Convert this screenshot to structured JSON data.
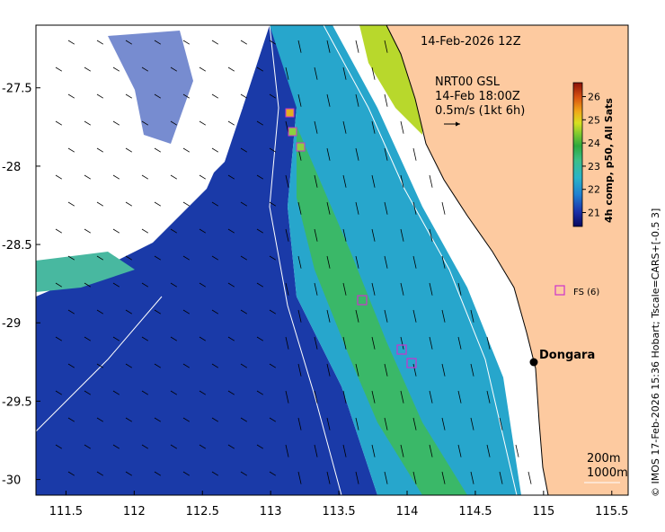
{
  "map": {
    "timestamp": "14-Feb-2026 12Z",
    "current_title": "NRT00 GSL",
    "current_time": "14-Feb 18:00Z",
    "current_scale": "0.5m/s (1kt 6h)",
    "place_label": "Dongara",
    "station_label": "FS (6)",
    "isobath_labels": [
      "200m",
      "1000m"
    ],
    "credit": "© IMOS 17-Feb-2026 15:36 Hobart; Tscale=CARS+[-0.5 3]",
    "x_ticks": [
      "111.5",
      "112",
      "112.5",
      "113",
      "113.5",
      "114",
      "114.5",
      "115",
      "115.5"
    ],
    "y_ticks": [
      "-27.5",
      "-28",
      "-28.5",
      "-29",
      "-29.5",
      "-30"
    ],
    "lon_range": [
      111.28,
      115.62
    ],
    "lat_range": [
      -30.1,
      -27.1
    ],
    "land_color": "#fdcaa0",
    "station_color": "#cc33cc"
  },
  "colorbar": {
    "label": "4h comp, p50, All Sats",
    "ticks": [
      "21",
      "22",
      "23",
      "24",
      "25",
      "26"
    ],
    "range": [
      20.4,
      26.6
    ]
  }
}
